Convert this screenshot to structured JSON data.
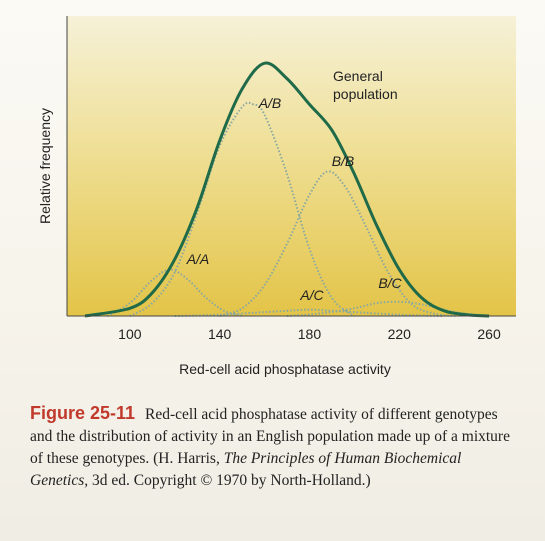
{
  "chart_data": {
    "type": "line",
    "xlabel": "Red-cell acid phosphatase activity",
    "ylabel": "Relative frequency",
    "x_ticks": [
      100,
      140,
      180,
      220,
      260
    ],
    "xlim": [
      72,
      272
    ],
    "ylim": [
      0,
      1
    ],
    "grid": false,
    "series": [
      {
        "name": "General population",
        "style": "solid",
        "x": [
          80,
          100,
          110,
          120,
          130,
          140,
          150,
          160,
          170,
          180,
          190,
          200,
          210,
          220,
          230,
          240,
          250,
          260
        ],
        "y": [
          0.0,
          0.03,
          0.09,
          0.22,
          0.42,
          0.68,
          0.88,
          0.98,
          0.92,
          0.82,
          0.72,
          0.55,
          0.35,
          0.18,
          0.07,
          0.02,
          0.005,
          0.0
        ]
      },
      {
        "name": "A/A",
        "style": "dotted",
        "x": [
          90,
          100,
          110,
          118,
          126,
          134,
          142,
          150
        ],
        "y": [
          0.0,
          0.05,
          0.14,
          0.18,
          0.14,
          0.07,
          0.02,
          0.0
        ]
      },
      {
        "name": "A/B",
        "style": "dotted",
        "x": [
          100,
          110,
          120,
          130,
          140,
          150,
          155,
          160,
          170,
          180,
          190,
          200
        ],
        "y": [
          0.0,
          0.05,
          0.17,
          0.4,
          0.66,
          0.81,
          0.82,
          0.78,
          0.55,
          0.26,
          0.07,
          0.0
        ]
      },
      {
        "name": "B/B",
        "style": "dotted",
        "x": [
          140,
          150,
          160,
          170,
          180,
          188,
          196,
          205,
          215,
          225,
          235,
          245
        ],
        "y": [
          0.0,
          0.03,
          0.12,
          0.28,
          0.47,
          0.56,
          0.5,
          0.35,
          0.17,
          0.05,
          0.01,
          0.0
        ]
      },
      {
        "name": "A/C",
        "style": "dotted",
        "x": [
          120,
          140,
          160,
          170,
          180,
          190,
          200,
          220,
          240
        ],
        "y": [
          0.0,
          0.005,
          0.015,
          0.02,
          0.025,
          0.02,
          0.015,
          0.005,
          0.0
        ]
      },
      {
        "name": "B/C",
        "style": "dotted",
        "x": [
          170,
          185,
          200,
          210,
          220,
          230,
          245,
          260
        ],
        "y": [
          0.0,
          0.01,
          0.03,
          0.05,
          0.055,
          0.045,
          0.015,
          0.0
        ]
      }
    ],
    "labels": [
      {
        "text": "General",
        "for": "General population"
      },
      {
        "text": "population",
        "for": "General population"
      },
      {
        "text": "A/A",
        "for": "A/A"
      },
      {
        "text": "A/B",
        "for": "A/B"
      },
      {
        "text": "B/B",
        "for": "B/B"
      },
      {
        "text": "A/C",
        "for": "A/C"
      },
      {
        "text": "B/C",
        "for": "B/C"
      }
    ]
  },
  "caption": {
    "figure_number": "Figure 25-11",
    "text_before_title": "Red-cell acid phosphatase activity of different genotypes and the distribution of activity in an English population made up of a mixture of these genotypes. (H. Harris, ",
    "book_title": "The Principles of Human Biochemical Genetics,",
    "text_after_title": " 3d ed. Copyright © 1970 by North-Holland.)"
  },
  "colors": {
    "plot_top": "#f4eed0",
    "plot_bottom": "#e4c94e",
    "population_curve": "#1f6a48",
    "genotype_curves": "#8aa8a0",
    "figure_number": "#c0392b"
  }
}
